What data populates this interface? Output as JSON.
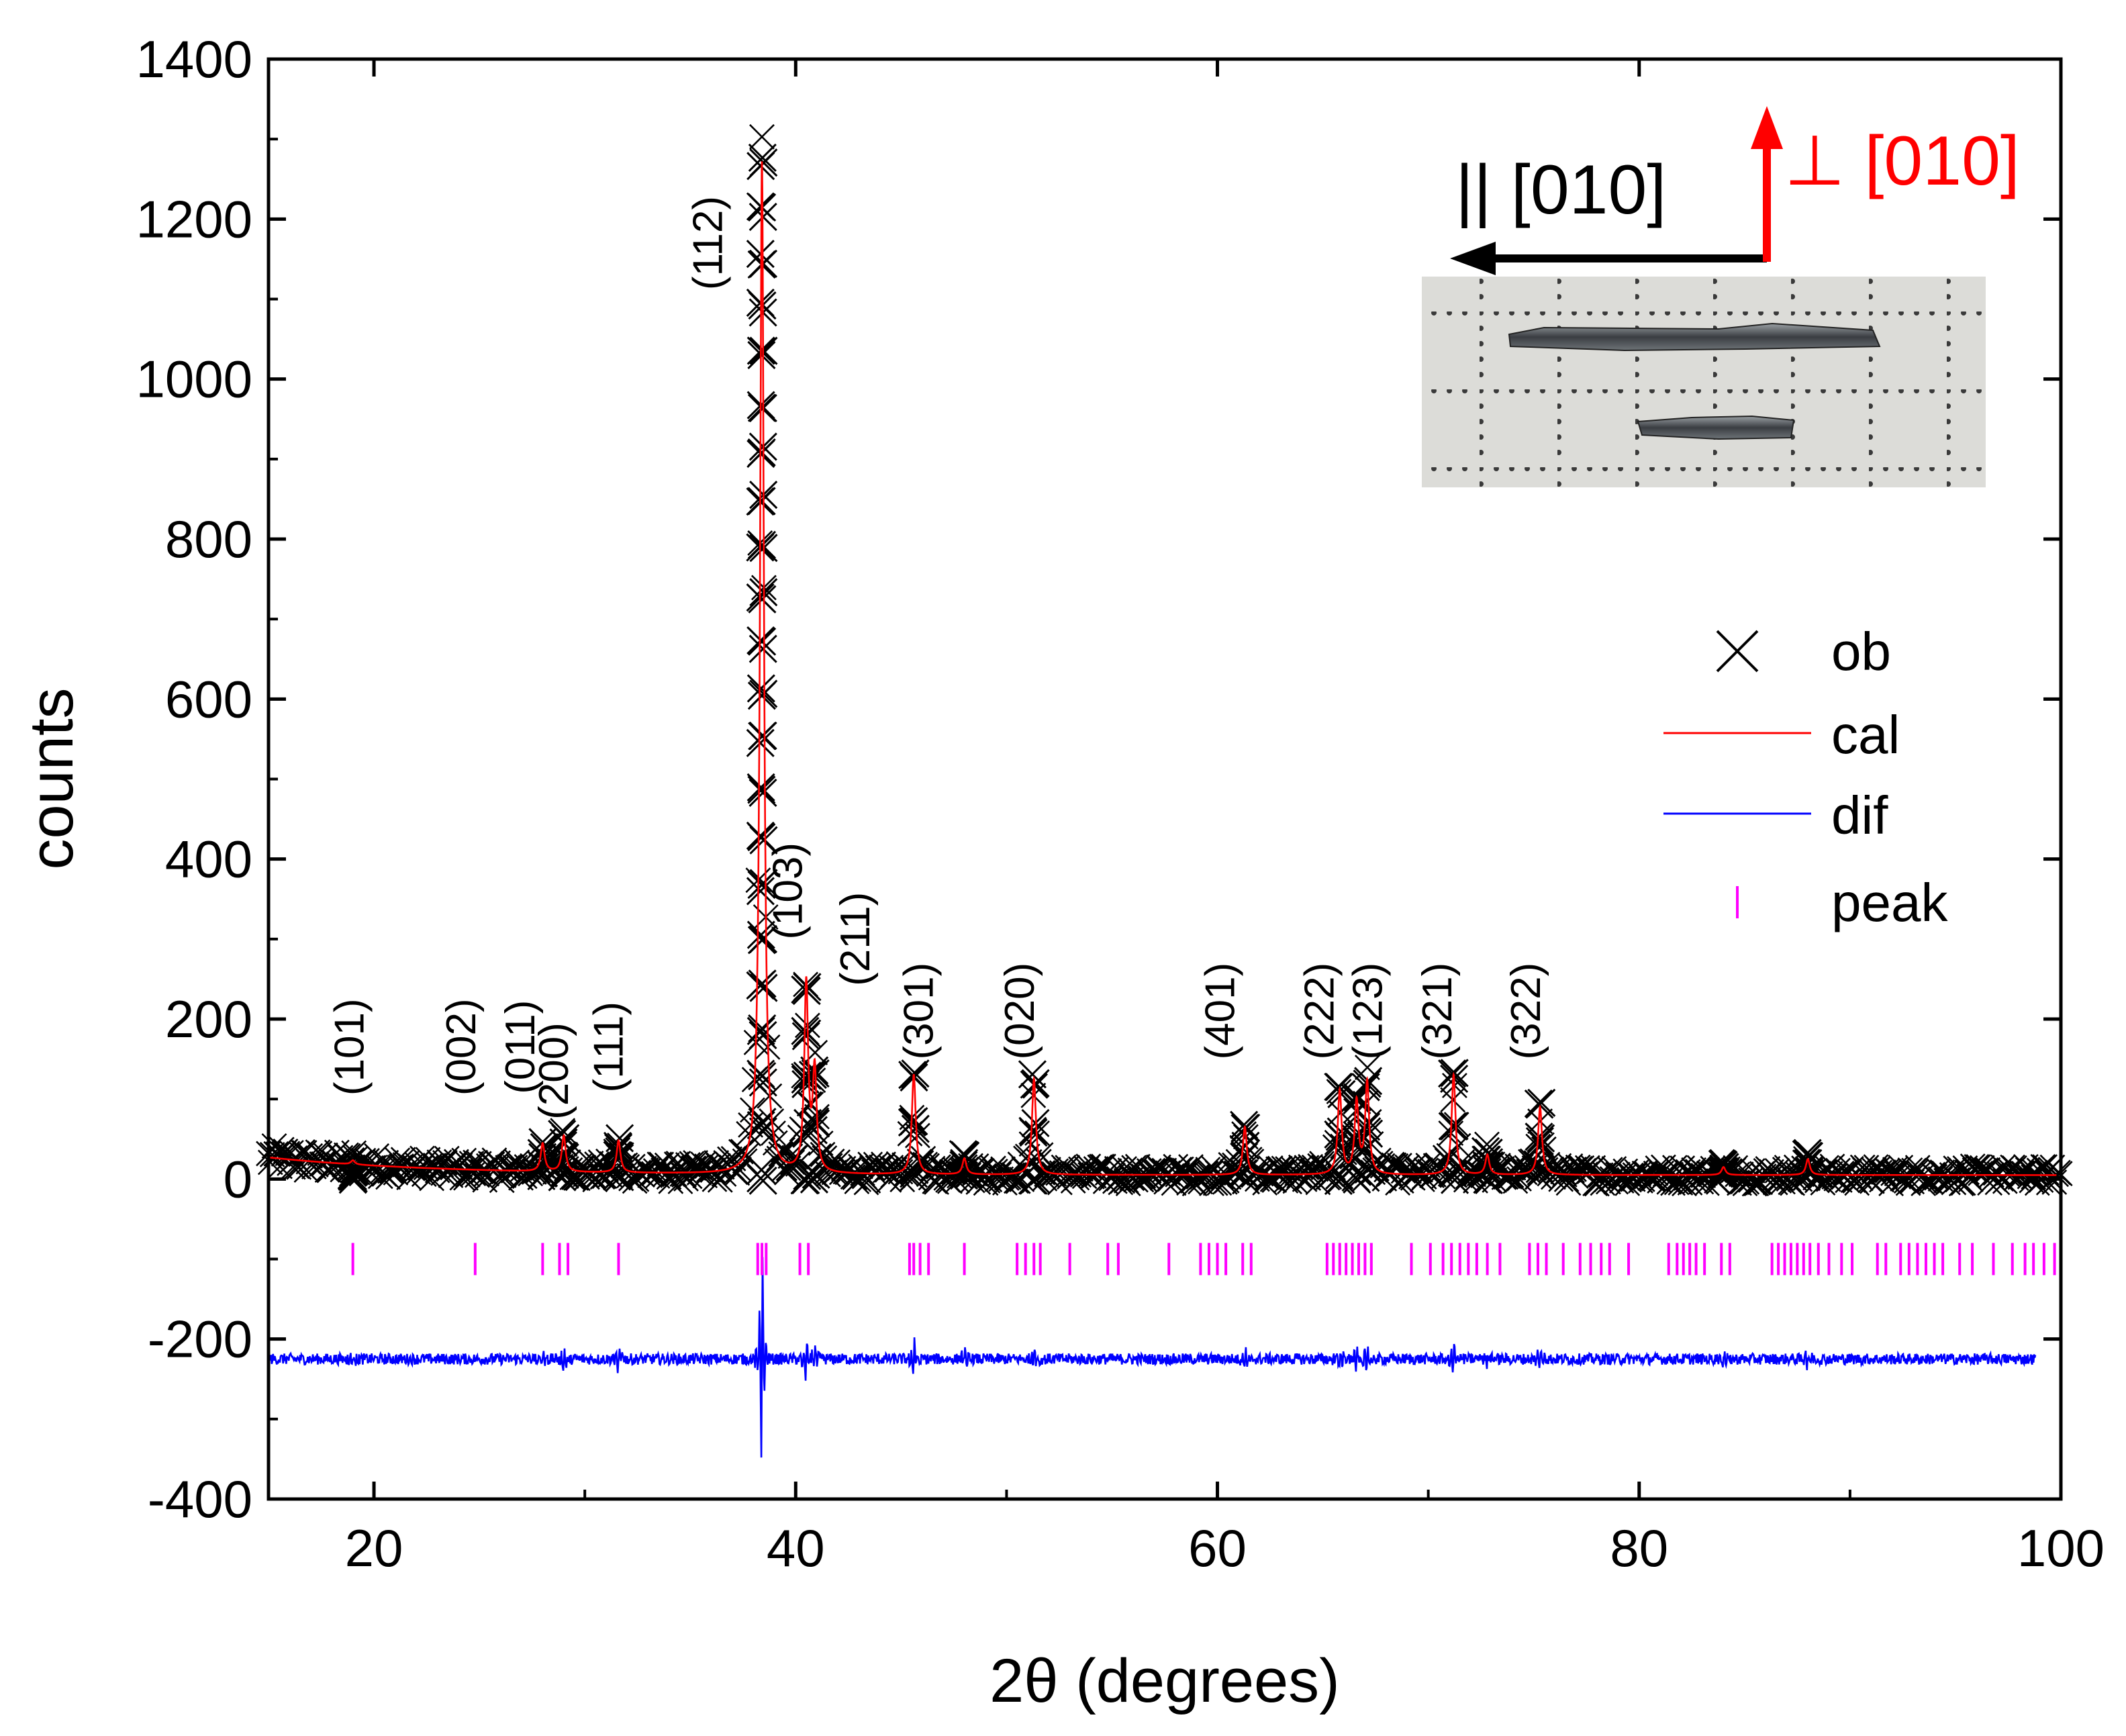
{
  "chart_data": {
    "type": "scatter",
    "title": "",
    "xlabel": "2θ (degrees)",
    "ylabel": "counts",
    "xlim": [
      15,
      100
    ],
    "ylim": [
      -400,
      1400
    ],
    "x_ticks": [
      20,
      40,
      60,
      80,
      100
    ],
    "y_ticks": [
      -400,
      -200,
      0,
      200,
      400,
      600,
      800,
      1000,
      1200,
      1400
    ],
    "background_level": 5,
    "diff_baseline": -225,
    "peak_tick_y": -100,
    "peaks": [
      {
        "x": 19.0,
        "y": 10
      },
      {
        "x": 28.0,
        "y": 40
      },
      {
        "x": 29.0,
        "y": 50
      },
      {
        "x": 31.6,
        "y": 45
      },
      {
        "x": 38.4,
        "y": 1270
      },
      {
        "x": 40.5,
        "y": 240
      },
      {
        "x": 40.9,
        "y": 130
      },
      {
        "x": 45.6,
        "y": 130
      },
      {
        "x": 48.0,
        "y": 25
      },
      {
        "x": 51.3,
        "y": 125
      },
      {
        "x": 61.3,
        "y": 65
      },
      {
        "x": 65.8,
        "y": 110
      },
      {
        "x": 66.6,
        "y": 95
      },
      {
        "x": 67.1,
        "y": 120
      },
      {
        "x": 71.2,
        "y": 130
      },
      {
        "x": 72.8,
        "y": 30
      },
      {
        "x": 75.3,
        "y": 90
      },
      {
        "x": 84.0,
        "y": 15
      },
      {
        "x": 88.0,
        "y": 25
      }
    ],
    "reflection_positions": [
      19.0,
      24.8,
      28.0,
      28.8,
      29.2,
      31.6,
      38.2,
      38.4,
      38.6,
      40.2,
      40.6,
      45.4,
      45.6,
      45.9,
      46.3,
      48.0,
      50.5,
      50.9,
      51.3,
      51.6,
      53.0,
      54.8,
      55.3,
      57.7,
      59.2,
      59.6,
      60.0,
      60.4,
      61.2,
      61.6,
      65.2,
      65.5,
      65.8,
      66.1,
      66.4,
      66.7,
      67.0,
      67.3,
      69.2,
      70.1,
      70.7,
      71.1,
      71.5,
      71.9,
      72.3,
      72.8,
      73.4,
      74.8,
      75.2,
      75.6,
      76.4,
      77.2,
      77.7,
      78.2,
      78.6,
      79.5,
      81.4,
      81.8,
      82.1,
      82.4,
      82.7,
      83.1,
      83.9,
      84.3,
      86.3,
      86.6,
      86.9,
      87.2,
      87.5,
      87.8,
      88.1,
      88.5,
      89.0,
      89.6,
      90.1,
      91.3,
      91.7,
      92.4,
      92.8,
      93.2,
      93.6,
      94.0,
      94.4,
      95.2,
      95.8,
      96.8,
      97.7,
      98.3,
      98.7,
      99.2,
      99.7
    ],
    "series": [
      {
        "name": "ob",
        "style": "cross",
        "color": "#000000"
      },
      {
        "name": "cal",
        "style": "line",
        "color": "#ff0000"
      },
      {
        "name": "dif",
        "style": "line",
        "color": "#0000ff"
      },
      {
        "name": "peak",
        "style": "tick",
        "color": "#ff00ff"
      }
    ],
    "hkl_labels": [
      {
        "text": "(101)",
        "x": 19.5,
        "y": 165
      },
      {
        "text": "(002)",
        "x": 24.8,
        "y": 165
      },
      {
        "text": "(011)",
        "x": 27.6,
        "y": 165
      },
      {
        "text": "(200)",
        "x": 29.2,
        "y": 135
      },
      {
        "text": "(111)",
        "x": 31.8,
        "y": 165
      },
      {
        "text": "(112)",
        "x": 36.5,
        "y": 1170
      },
      {
        "text": "(103)",
        "x": 40.3,
        "y": 360
      },
      {
        "text": "(211)",
        "x": 43.5,
        "y": 300
      },
      {
        "text": "(301)",
        "x": 46.5,
        "y": 210
      },
      {
        "text": "(020)",
        "x": 51.3,
        "y": 210
      },
      {
        "text": "(401)",
        "x": 60.8,
        "y": 210
      },
      {
        "text": "(222)",
        "x": 65.5,
        "y": 210
      },
      {
        "text": "(123)",
        "x": 67.8,
        "y": 210
      },
      {
        "text": "(321)",
        "x": 71.1,
        "y": 210
      },
      {
        "text": "(322)",
        "x": 75.3,
        "y": 210
      }
    ]
  },
  "inset": {
    "parallel_label": "|| [010]",
    "perp_label": "⊥ [010]",
    "parallel_color": "#000000",
    "perp_color": "#ff0000"
  }
}
